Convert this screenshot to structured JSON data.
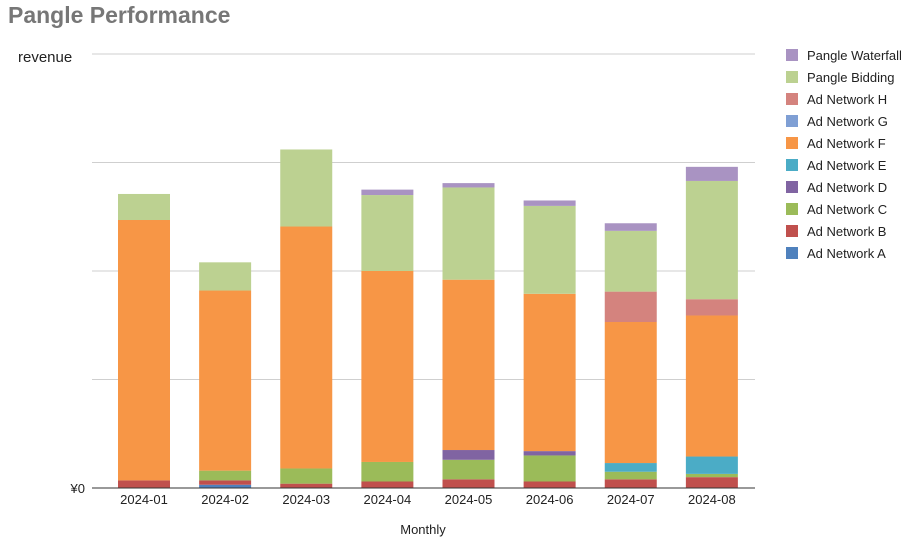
{
  "title": "Pangle Performance",
  "chart_data": {
    "type": "bar",
    "stacked": true,
    "title": "Pangle Performance",
    "xlabel": "Monthly",
    "ylabel": "revenue",
    "y_zero_label": "¥0",
    "ylim": [
      0,
      40
    ],
    "grid": true,
    "legend_position": "right",
    "categories": [
      "2024-01",
      "2024-02",
      "2024-03",
      "2024-04",
      "2024-05",
      "2024-06",
      "2024-07",
      "2024-08"
    ],
    "series": [
      {
        "name": "Ad Network A",
        "color": "#4f81bd",
        "values": [
          0,
          0.3,
          0,
          0,
          0,
          0,
          0,
          0
        ]
      },
      {
        "name": "Ad Network B",
        "color": "#c0504d",
        "values": [
          0.7,
          0.4,
          0.4,
          0.6,
          0.8,
          0.6,
          0.8,
          1.0
        ]
      },
      {
        "name": "Ad Network C",
        "color": "#9bbb59",
        "values": [
          0,
          0.9,
          1.4,
          1.8,
          1.8,
          2.4,
          0.7,
          0.3
        ]
      },
      {
        "name": "Ad Network D",
        "color": "#8064a2",
        "values": [
          0,
          0,
          0,
          0,
          0.9,
          0.4,
          0,
          0
        ]
      },
      {
        "name": "Ad Network E",
        "color": "#4bacc6",
        "values": [
          0,
          0,
          0,
          0,
          0,
          0,
          0.8,
          1.6
        ]
      },
      {
        "name": "Ad Network F",
        "color": "#f79646",
        "values": [
          24.0,
          16.6,
          22.3,
          17.6,
          15.7,
          14.5,
          13.0,
          13.0
        ]
      },
      {
        "name": "Ad Network G",
        "color": "#7f9fd4",
        "values": [
          0,
          0,
          0,
          0,
          0,
          0,
          0,
          0
        ]
      },
      {
        "name": "Ad Network H",
        "color": "#d4837e",
        "values": [
          0,
          0,
          0,
          0,
          0,
          0,
          2.8,
          1.5
        ]
      },
      {
        "name": "Pangle Bidding",
        "color": "#bcd191",
        "values": [
          2.4,
          2.6,
          7.1,
          7.0,
          8.5,
          8.1,
          5.6,
          10.9
        ]
      },
      {
        "name": "Pangle Waterfall",
        "color": "#a993c2",
        "values": [
          0,
          0,
          0,
          0.5,
          0.4,
          0.5,
          0.7,
          1.3
        ]
      }
    ]
  }
}
